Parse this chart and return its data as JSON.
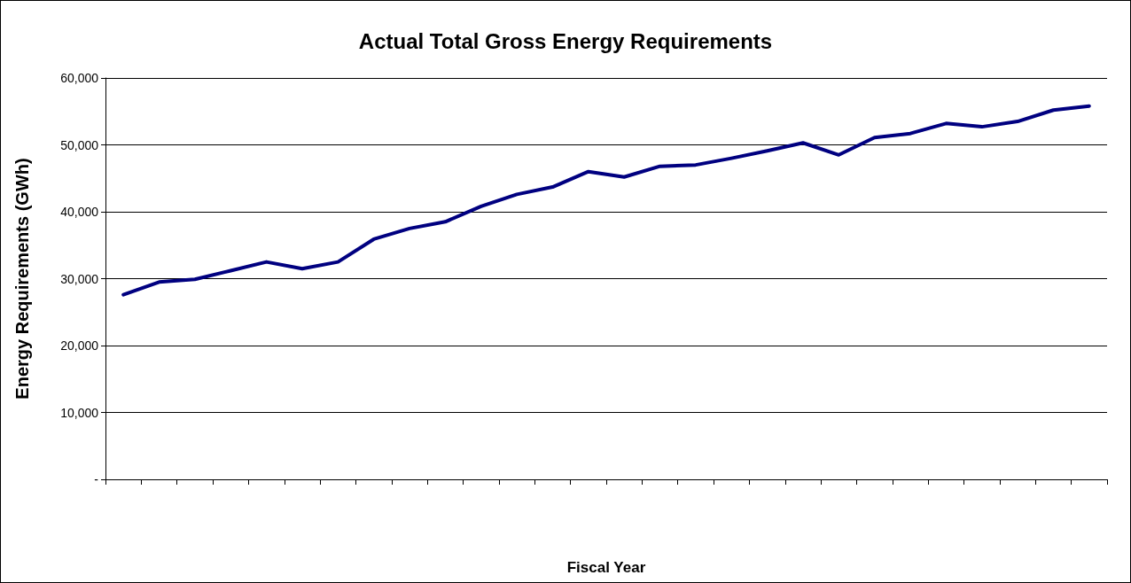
{
  "chart_data": {
    "type": "line",
    "title": "Actual Total Gross Energy Requirements",
    "xlabel": "Fiscal Year",
    "ylabel": "Energy Requirements (GWh)",
    "categories": [
      null,
      null,
      null,
      null,
      null,
      null,
      null,
      null,
      null,
      null,
      null,
      null,
      null,
      null,
      null,
      null,
      null,
      null,
      null,
      null,
      null,
      null,
      null,
      null,
      null,
      null,
      null,
      null
    ],
    "series": [
      {
        "color": "#000080",
        "values": [
          27600,
          29500,
          29900,
          31200,
          32500,
          31500,
          32500,
          35900,
          37500,
          38500,
          40800,
          42600,
          43700,
          46000,
          45200,
          46800,
          47000,
          48000,
          49100,
          50300,
          48500,
          51100,
          51700,
          53200,
          52700,
          53500,
          55200,
          55800
        ]
      }
    ],
    "ylim": [
      0,
      60000
    ],
    "yticks": [
      {
        "value": 0,
        "label": "-"
      },
      {
        "value": 10000,
        "label": "10,000"
      },
      {
        "value": 20000,
        "label": "20,000"
      },
      {
        "value": 30000,
        "label": "30,000"
      },
      {
        "value": 40000,
        "label": "40,000"
      },
      {
        "value": 50000,
        "label": "50,000"
      },
      {
        "value": 60000,
        "label": "60,000"
      }
    ],
    "grid": "y",
    "marker": "none",
    "line_style": "solid"
  }
}
